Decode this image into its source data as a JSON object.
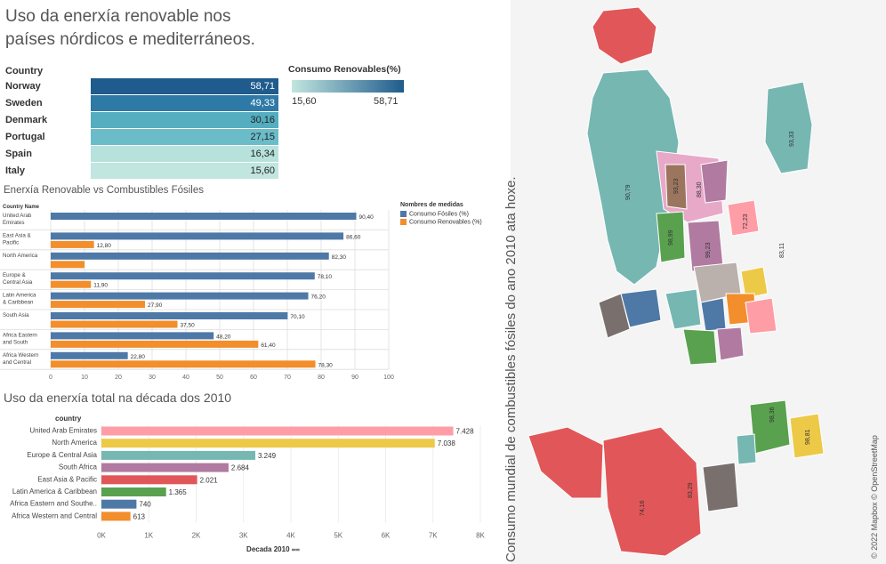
{
  "dashboard": {
    "title": "Uso da enerxía renovable nos países nórdicos e mediterráneos.",
    "title_line1": "Uso da enerxía renovable nos",
    "title_line2": "países nórdicos e mediterráneos."
  },
  "country_table": {
    "header": "Country",
    "rows": [
      {
        "country": "Norway",
        "value": "58,71",
        "color": "#1f5b8c"
      },
      {
        "country": "Sweden",
        "value": "49,33",
        "color": "#2e7aa6"
      },
      {
        "country": "Denmark",
        "value": "30,16",
        "color": "#55adc0"
      },
      {
        "country": "Portugal",
        "value": "27,15",
        "color": "#6bbcc9"
      },
      {
        "country": "Spain",
        "value": "16,34",
        "color": "#b7e2dc"
      },
      {
        "country": "Italy",
        "value": "15,60",
        "color": "#c1e6df"
      }
    ]
  },
  "color_legend": {
    "title": "Consumo Renovables(%)",
    "min_label": "15,60",
    "max_label": "58,71",
    "min_color": "#c1e6df",
    "max_color": "#1f5b8c"
  },
  "chart_data": [
    {
      "type": "bar",
      "title": "Enerxía Renovable vs Combustibles Fósiles",
      "ylabel": "Country Name",
      "legend_title": "Nombres de medidas",
      "legend_placement": "top-right",
      "categories": [
        "United Arab Emirates",
        "East Asia & Pacific",
        "North America",
        "Europe & Central Asia",
        "Latin America & Caribbean",
        "South Asia",
        "Africa Eastern and South",
        "Africa Western and Central"
      ],
      "series": [
        {
          "name": "Consumo Fósiles (%)",
          "color": "#4e79a7",
          "values": [
            90.4,
            86.6,
            82.3,
            78.1,
            76.2,
            70.1,
            48.2,
            22.8
          ],
          "labels": [
            "90,40",
            "86,60",
            "82,30",
            "78,10",
            "76,20",
            "70,10",
            "48,20",
            "22,80"
          ]
        },
        {
          "name": "Consumo Renovables (%)",
          "color": "#f28e2b",
          "values": [
            null,
            12.8,
            10,
            11.9,
            27.9,
            37.5,
            61.4,
            78.3
          ],
          "labels": [
            "",
            "12,80",
            "",
            "11,90",
            "27,90",
            "37,50",
            "61,40",
            "78,30"
          ]
        }
      ],
      "xlim": [
        0,
        100
      ],
      "xticks": [
        0,
        10,
        20,
        30,
        40,
        50,
        60,
        70,
        80,
        90,
        100
      ],
      "grid": true
    },
    {
      "type": "bar",
      "title": "Uso da enerxía total na década dos 2010",
      "ylabel": "country",
      "xlabel": "Decada 2010",
      "categories": [
        "United Arab Emirates",
        "North America",
        "Europe & Central Asia",
        "South Africa",
        "East Asia & Pacific",
        "Latin America & Caribbean",
        "Africa Eastern and Southe..",
        "Africa Western and Central"
      ],
      "values": [
        7428,
        7038,
        3249,
        2684,
        2021,
        1365,
        740,
        613
      ],
      "value_labels": [
        "7.428",
        "7.038",
        "3.249",
        "2.684",
        "2.021",
        "1.365",
        "740",
        "613"
      ],
      "colors": [
        "#ff9da7",
        "#edc948",
        "#76b7b2",
        "#b07aa1",
        "#e15759",
        "#59a14f",
        "#4e79a7",
        "#f28e2b"
      ],
      "xlim": [
        0,
        8000
      ],
      "xticks": [
        "0K",
        "1K",
        "2K",
        "3K",
        "4K",
        "5K",
        "6K",
        "7K",
        "8K"
      ],
      "grid": true
    }
  ],
  "map": {
    "title": "Consumo mundial de combustibles fósiles do ano 2010 ata hoxe.",
    "attribution": "© 2022 Mapbox © OpenStreetMap",
    "labels": [
      "90,79",
      "93,23",
      "88,30",
      "93,33",
      "98,99",
      "72,23",
      "99,23",
      "83,11",
      "74,16",
      "83,29",
      "98,36",
      "98,81"
    ]
  }
}
